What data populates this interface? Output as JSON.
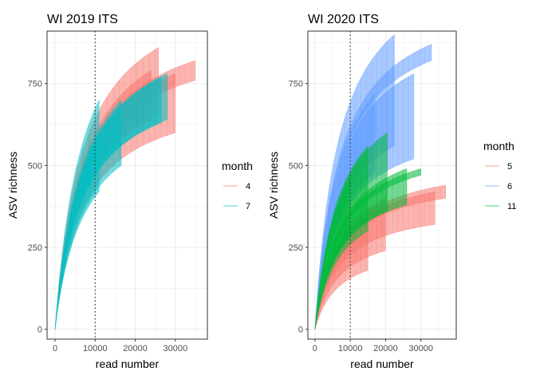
{
  "figure": {
    "colors": {
      "red": "#F8766D",
      "teal": "#00BFC4",
      "green": "#00BA38",
      "blue": "#619CFF",
      "grid": "#EBEBEB",
      "axis": "#333333",
      "vline": "#444444"
    }
  },
  "chart_data": [
    {
      "type": "line",
      "title": "WI 2019 ITS",
      "xlabel": "read number",
      "ylabel": "ASV richness",
      "xlim": [
        -2000,
        38000
      ],
      "ylim": [
        -30,
        910
      ],
      "x_ticks": [
        0,
        10000,
        20000,
        30000
      ],
      "x_tick_labels": [
        "0",
        "10000",
        "20000",
        "30000"
      ],
      "y_ticks": [
        0,
        250,
        500,
        750
      ],
      "y_tick_labels": [
        "0",
        "250",
        "500",
        "750"
      ],
      "grid": true,
      "reference_line_x": 10000,
      "legend": {
        "title": "month",
        "position": "right",
        "entries": [
          "4",
          "7"
        ]
      },
      "series": [
        {
          "name": "4",
          "color": "#F8766D",
          "bands": [
            {
              "xmax": 35000,
              "lo": 760,
              "hi": 820
            },
            {
              "xmax": 30000,
              "lo": 600,
              "hi": 780
            },
            {
              "xmax": 25800,
              "lo": 660,
              "hi": 860
            },
            {
              "xmax": 24000,
              "lo": 640,
              "hi": 790
            }
          ]
        },
        {
          "name": "7",
          "color": "#00BFC4",
          "bands": [
            {
              "xmax": 28000,
              "lo": 640,
              "hi": 780
            },
            {
              "xmax": 26500,
              "lo": 630,
              "hi": 770
            },
            {
              "xmax": 16500,
              "lo": 500,
              "hi": 700
            },
            {
              "xmax": 11000,
              "lo": 420,
              "hi": 700
            }
          ]
        }
      ]
    },
    {
      "type": "line",
      "title": "WI 2020 ITS",
      "xlabel": "read number",
      "ylabel": "ASV richness",
      "xlim": [
        -2000,
        40000
      ],
      "ylim": [
        -30,
        910
      ],
      "x_ticks": [
        0,
        10000,
        20000,
        30000
      ],
      "x_tick_labels": [
        "0",
        "10000",
        "20000",
        "30000"
      ],
      "y_ticks": [
        0,
        250,
        500,
        750
      ],
      "y_tick_labels": [
        "0",
        "250",
        "500",
        "750"
      ],
      "grid": true,
      "reference_line_x": 10000,
      "legend": {
        "title": "month",
        "position": "right",
        "entries": [
          "5",
          "6",
          "11"
        ]
      },
      "series": [
        {
          "name": "5",
          "color": "#F8766D",
          "bands": [
            {
              "xmax": 37000,
              "lo": 400,
              "hi": 440
            },
            {
              "xmax": 34000,
              "lo": 320,
              "hi": 420
            },
            {
              "xmax": 20000,
              "lo": 240,
              "hi": 400
            },
            {
              "xmax": 15000,
              "lo": 180,
              "hi": 340
            }
          ]
        },
        {
          "name": "6",
          "color": "#619CFF",
          "bands": [
            {
              "xmax": 33000,
              "lo": 820,
              "hi": 870
            },
            {
              "xmax": 28000,
              "lo": 520,
              "hi": 780
            },
            {
              "xmax": 22500,
              "lo": 560,
              "hi": 900
            },
            {
              "xmax": 17000,
              "lo": 480,
              "hi": 720
            }
          ]
        },
        {
          "name": "11",
          "color": "#00BA38",
          "bands": [
            {
              "xmax": 30000,
              "lo": 470,
              "hi": 490
            },
            {
              "xmax": 26000,
              "lo": 380,
              "hi": 490
            },
            {
              "xmax": 20500,
              "lo": 360,
              "hi": 600
            },
            {
              "xmax": 15000,
              "lo": 300,
              "hi": 560
            },
            {
              "xmax": 10000,
              "lo": 280,
              "hi": 460
            }
          ]
        }
      ]
    }
  ]
}
